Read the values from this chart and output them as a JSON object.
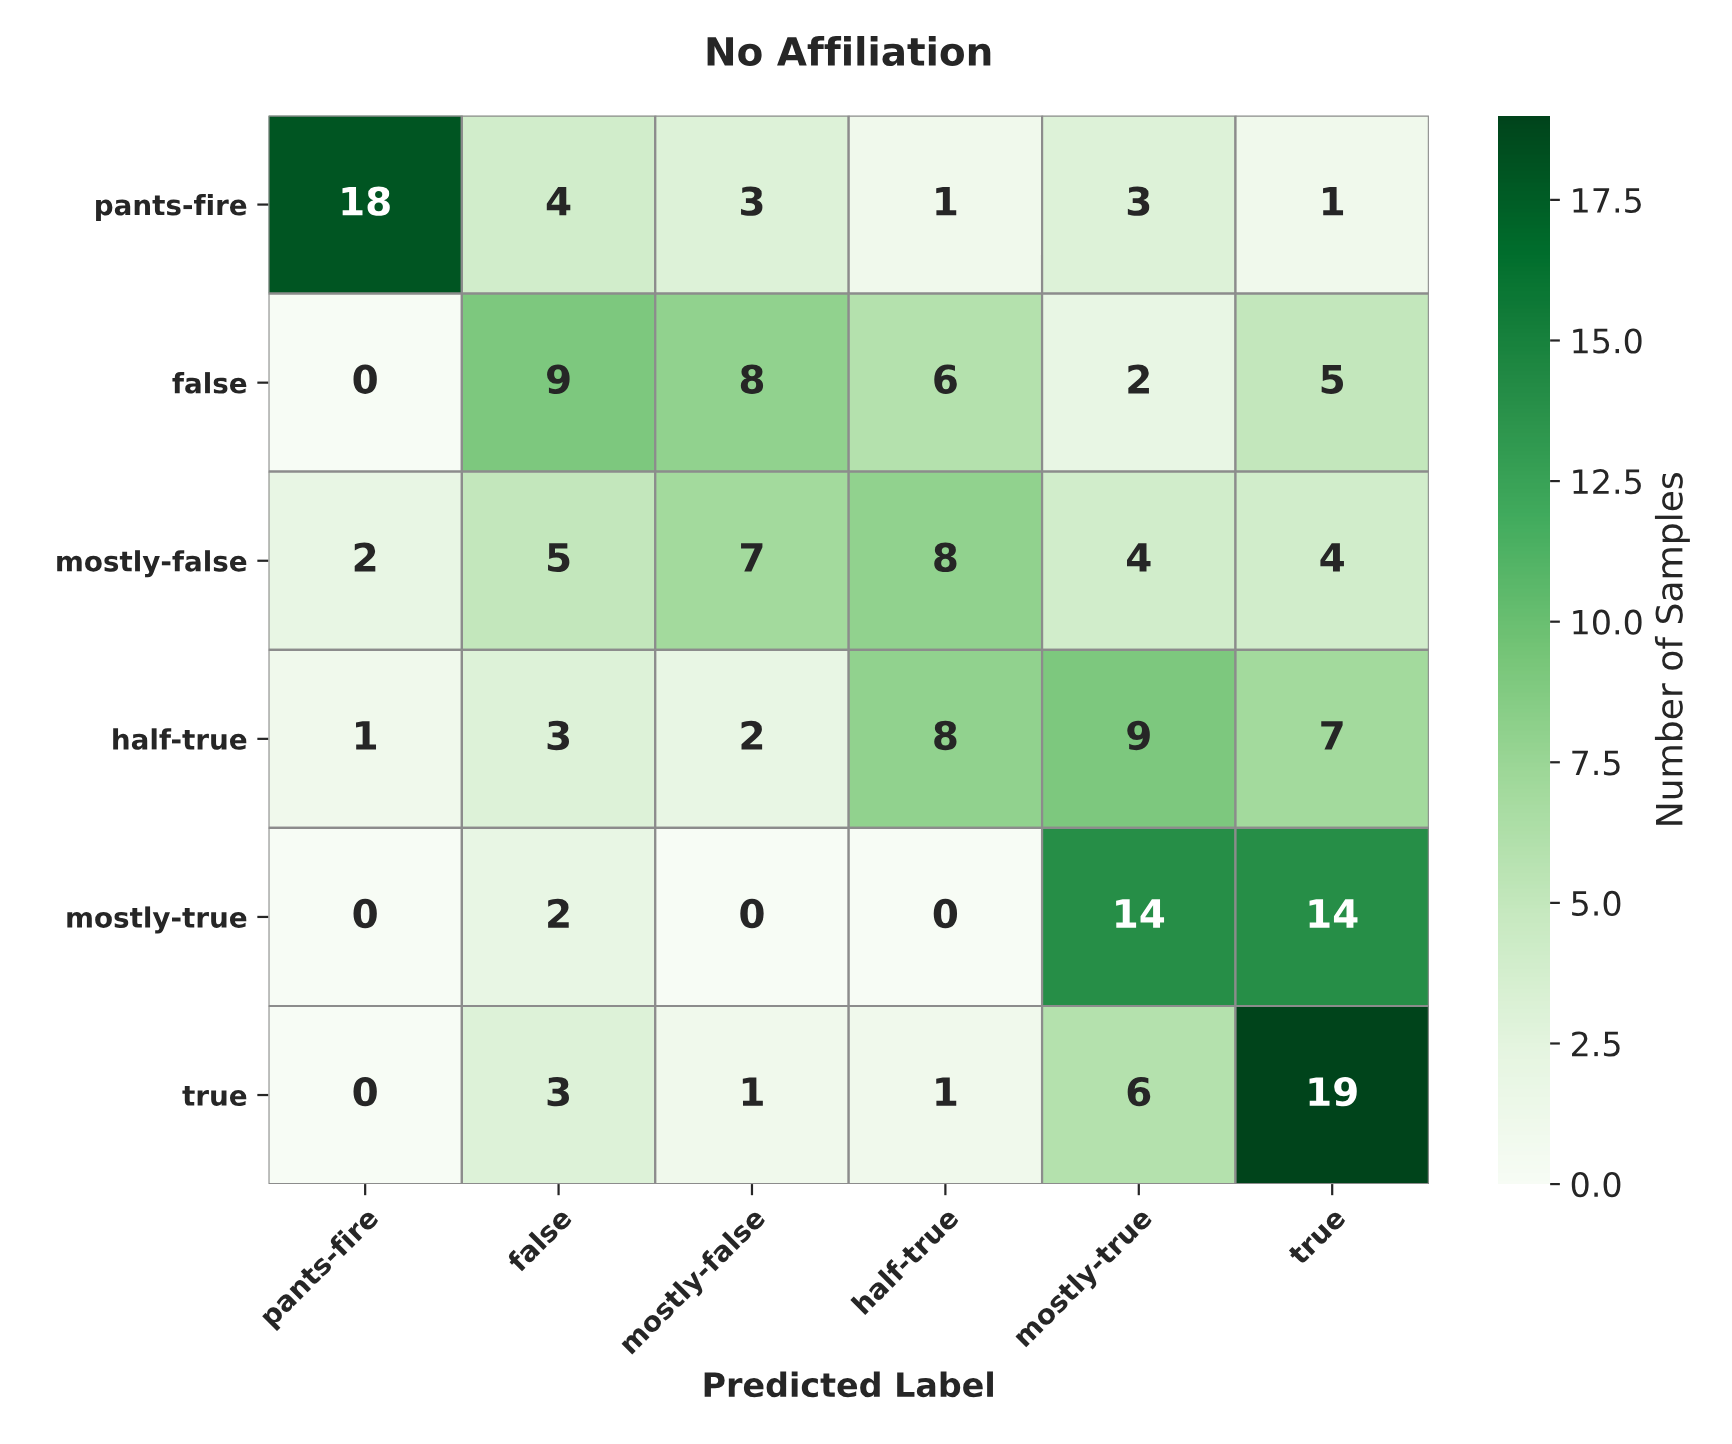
{
  "chart_data": {
    "type": "heatmap",
    "title": "No Affiliation",
    "xlabel": "Predicted Label",
    "clabel": "Number of Samples",
    "categories": [
      "pants-fire",
      "false",
      "mostly-false",
      "half-true",
      "mostly-true",
      "true"
    ],
    "y_categories": [
      "pants-fire",
      "false",
      "mostly-false",
      "half-true",
      "mostly-true",
      "true"
    ],
    "cells": [
      [
        18,
        4,
        3,
        1,
        3,
        1
      ],
      [
        0,
        9,
        8,
        6,
        2,
        5
      ],
      [
        2,
        5,
        7,
        8,
        4,
        4
      ],
      [
        1,
        3,
        2,
        8,
        9,
        7
      ],
      [
        0,
        2,
        0,
        0,
        14,
        14
      ],
      [
        0,
        3,
        1,
        1,
        6,
        19
      ]
    ],
    "data_labels": true,
    "clim": [
      0,
      19
    ],
    "cticks": [
      {
        "value": 0,
        "label": "0.0"
      },
      {
        "value": 2.5,
        "label": "2.5"
      },
      {
        "value": 5,
        "label": "5.0"
      },
      {
        "value": 7.5,
        "label": "7.5"
      },
      {
        "value": 10,
        "label": "10.0"
      },
      {
        "value": 12.5,
        "label": "12.5"
      },
      {
        "value": 15,
        "label": "15.0"
      },
      {
        "value": 17.5,
        "label": "17.5"
      }
    ]
  }
}
